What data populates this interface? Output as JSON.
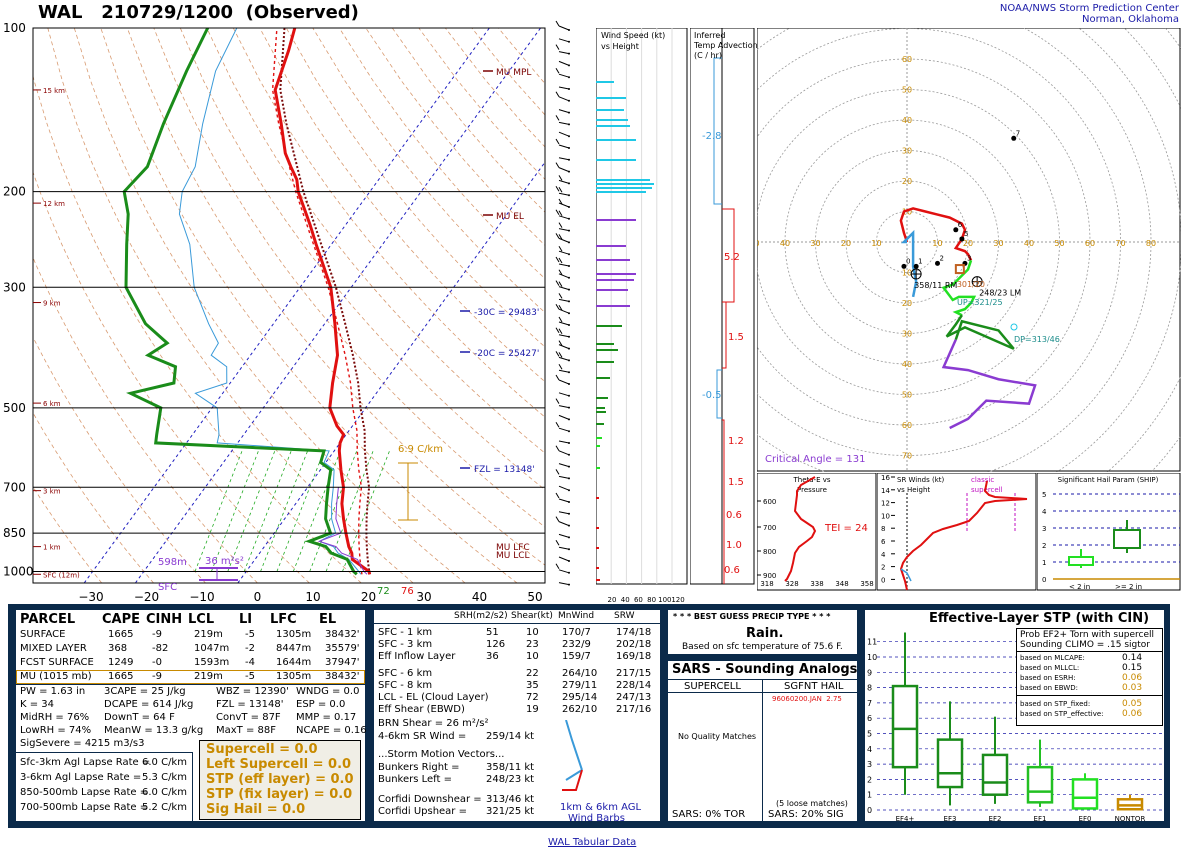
{
  "header": {
    "station": "WAL",
    "time_id": "210729/1200",
    "observed": "(Observed)",
    "org1": "NOAA/NWS Storm Prediction Center",
    "org2": "Norman, Oklahoma"
  },
  "skewt": {
    "pressure_levels": [
      100,
      200,
      300,
      500,
      700,
      850,
      1000
    ],
    "pressure_labels": [
      "100",
      "200",
      "300",
      "500",
      "700",
      "850",
      "1000"
    ],
    "temp_ticks": [
      -30,
      -20,
      -10,
      0,
      10,
      20,
      30,
      40,
      50
    ],
    "temp_labels": [
      "−30",
      "−20",
      "−10",
      "0",
      "10",
      "20",
      "30",
      "40",
      "50"
    ],
    "height_marks": [
      {
        "label": "15 km",
        "p": 130
      },
      {
        "label": "12 km",
        "p": 210
      },
      {
        "label": "9 km",
        "p": 320
      },
      {
        "label": "6 km",
        "p": 490
      },
      {
        "label": "3 km",
        "p": 710
      },
      {
        "label": "1 km",
        "p": 900
      },
      {
        "label": "SFC (12m)",
        "p": 1012
      }
    ],
    "annotations": {
      "mu_mpl": "MU MPL",
      "mu_el": "MU EL",
      "mu_lfc": "MU LFC",
      "mu_lcl": "MU LCL",
      "m30c": "-30C = 29483'",
      "m20c": "-20C = 25427'",
      "fzl": "FZL = 13148'",
      "lapse": "6.9 C/km",
      "pw_box": "36 m²s²",
      "left_label": "598m",
      "sfc_label": "SFC",
      "sfc_t": "76",
      "sfc_td": "72"
    },
    "temperature_profile": [
      [
        1012,
        24.5
      ],
      [
        1000,
        24
      ],
      [
        950,
        19
      ],
      [
        925,
        18
      ],
      [
        900,
        16.5
      ],
      [
        850,
        14
      ],
      [
        800,
        11.5
      ],
      [
        750,
        9
      ],
      [
        700,
        7
      ],
      [
        650,
        4
      ],
      [
        600,
        1
      ],
      [
        580,
        0
      ],
      [
        560,
        -0.5
      ],
      [
        540,
        -3
      ],
      [
        500,
        -7
      ],
      [
        450,
        -10
      ],
      [
        400,
        -13
      ],
      [
        350,
        -18
      ],
      [
        300,
        -24
      ],
      [
        250,
        -33
      ],
      [
        230,
        -37
      ],
      [
        200,
        -44
      ],
      [
        190,
        -46
      ],
      [
        180,
        -49
      ],
      [
        170,
        -52
      ],
      [
        150,
        -57
      ],
      [
        130,
        -63
      ],
      [
        110,
        -66
      ],
      [
        100,
        -68
      ]
    ],
    "dewpoint_profile": [
      [
        1012,
        22
      ],
      [
        1000,
        21
      ],
      [
        950,
        18
      ],
      [
        925,
        14
      ],
      [
        900,
        12
      ],
      [
        880,
        8
      ],
      [
        850,
        11
      ],
      [
        800,
        8
      ],
      [
        750,
        6
      ],
      [
        700,
        4
      ],
      [
        650,
        2
      ],
      [
        630,
        -1
      ],
      [
        600,
        -2
      ],
      [
        580,
        -36
      ],
      [
        560,
        -37
      ],
      [
        500,
        -40
      ],
      [
        470,
        -48
      ],
      [
        450,
        -41
      ],
      [
        420,
        -43
      ],
      [
        400,
        -50
      ],
      [
        380,
        -48
      ],
      [
        350,
        -55
      ],
      [
        300,
        -64
      ],
      [
        250,
        -70
      ],
      [
        220,
        -74
      ],
      [
        200,
        -78
      ],
      [
        180,
        -77
      ],
      [
        150,
        -80
      ],
      [
        120,
        -83
      ],
      [
        100,
        -85
      ]
    ],
    "parcel_profile": [
      [
        1012,
        24.5
      ],
      [
        950,
        22
      ],
      [
        900,
        20
      ],
      [
        850,
        18
      ],
      [
        800,
        16
      ],
      [
        750,
        14
      ],
      [
        700,
        12
      ],
      [
        650,
        9
      ],
      [
        600,
        6
      ],
      [
        550,
        3
      ],
      [
        500,
        -1
      ],
      [
        450,
        -5
      ],
      [
        400,
        -10
      ],
      [
        350,
        -16
      ],
      [
        300,
        -23
      ],
      [
        250,
        -32
      ],
      [
        200,
        -43
      ],
      [
        150,
        -56
      ],
      [
        130,
        -62
      ],
      [
        100,
        -70
      ]
    ]
  },
  "wind_speed_panel": {
    "title1": "Wind Speed (kt)",
    "title2": "vs Height",
    "axis_labels": [
      "20",
      "40",
      "60",
      "80",
      "100",
      "120"
    ]
  },
  "temp_adv_panel": {
    "title1": "Inferred",
    "title2": "Temp Advection",
    "title3": "(C / hr)",
    "values": [
      "-2.8",
      "5.2",
      "1.5",
      "-0.5",
      "1.2",
      "1.5",
      "0.6",
      "1.0",
      "0.6"
    ]
  },
  "hodograph": {
    "ring_labels": [
      "10",
      "20",
      "30",
      "40",
      "50",
      "60",
      "70"
    ],
    "axis_labels_x": [
      "50",
      "40",
      "30",
      "20",
      "10",
      "10",
      "20",
      "30",
      "40",
      "50",
      "60",
      "70",
      "80"
    ],
    "lm": "248/23 LM",
    "rm": "358/11 RM",
    "box_label": "301/20",
    "up_label": "UP=321/25",
    "dp_label": "DP=313/46",
    "critical_angle": "Critical Angle = 131",
    "points": [
      "0",
      "1",
      "2",
      "3",
      "5",
      "6",
      "7"
    ]
  },
  "theta_panel": {
    "title1": "Theta-E vs",
    "title2": "Pressure",
    "tei": "TEI = 24",
    "x_labels": [
      "318",
      "328",
      "338",
      "348",
      "358"
    ],
    "p_labels": [
      "600",
      "700",
      "800",
      "900"
    ]
  },
  "srwinds_panel": {
    "title1": "SR Winds (kt)",
    "title2": "vs Height",
    "classic": "classic",
    "supercell": "supercell",
    "y_labels": [
      "16",
      "14",
      "12",
      "10",
      "8",
      "6",
      "4",
      "2",
      "0"
    ]
  },
  "ship_panel": {
    "title": "Significant Hail Param (SHIP)",
    "y_labels": [
      "5",
      "4",
      "3",
      "2",
      "1",
      "0"
    ],
    "lt2": "< 2 in",
    "ge2": ">= 2 in"
  },
  "parcel_table": {
    "headers": [
      "PARCEL",
      "CAPE",
      "CINH",
      "LCL",
      "LI",
      "LFC",
      "EL"
    ],
    "rows": [
      [
        "SURFACE",
        "1665",
        "-9",
        "219m",
        "-5",
        "1305m",
        "38432'"
      ],
      [
        "MIXED LAYER",
        "368",
        "-82",
        "1047m",
        "-2",
        "8447m",
        "35579'"
      ],
      [
        "FCST SURFACE",
        "1249",
        "-0",
        "1593m",
        "-4",
        "1644m",
        "37947'"
      ],
      [
        "MU    (1015 mb)",
        "1665",
        "-9",
        "219m",
        "-5",
        "1305m",
        "38432'"
      ]
    ]
  },
  "indices": {
    "col1": [
      "PW = 1.63 in",
      "K = 34",
      "MidRH = 76%",
      "LowRH = 74%",
      "SigSevere = 4215 m3/s3"
    ],
    "col2": [
      "3CAPE = 25 J/kg",
      "DCAPE = 614 J/kg",
      "DownT = 64 F",
      "MeanW = 13.3 g/kg"
    ],
    "col3": [
      "WBZ = 12390'",
      "FZL = 13148'",
      "ConvT = 87F",
      "MaxT = 88F"
    ],
    "col4": [
      "WNDG = 0.0",
      "ESP = 0.0",
      "MMP = 0.17",
      "NCAPE = 0.16"
    ]
  },
  "lapse_rates": [
    [
      "Sfc-3km Agl Lapse Rate =",
      "6.0 C/km"
    ],
    [
      "3-6km Agl Lapse Rate =",
      "5.3 C/km"
    ],
    [
      "850-500mb Lapse Rate =",
      "6.0 C/km"
    ],
    [
      "700-500mb Lapse Rate =",
      "5.2 C/km"
    ]
  ],
  "composites": [
    "Supercell = 0.0",
    "Left Supercell = 0.0",
    "STP (eff layer) = 0.0",
    "STP (fix layer) = 0.0",
    "Sig Hail = 0.0"
  ],
  "kinematics": {
    "headers": [
      "SRH(m2/s2)",
      "Shear(kt)",
      "MnWind",
      "SRW"
    ],
    "rows": [
      [
        "SFC - 1 km",
        "51",
        "10",
        "170/7",
        "174/18"
      ],
      [
        "SFC - 3 km",
        "126",
        "23",
        "232/9",
        "202/18"
      ],
      [
        "Eff Inflow Layer",
        "36",
        "10",
        "159/7",
        "169/18"
      ],
      [
        "SFC - 6 km",
        "",
        "22",
        "264/10",
        "217/15"
      ],
      [
        "SFC - 8 km",
        "",
        "35",
        "279/11",
        "228/14"
      ],
      [
        "LCL - EL (Cloud Layer)",
        "",
        "72",
        "295/14",
        "247/13"
      ],
      [
        "Eff Shear (EBWD)",
        "",
        "19",
        "262/10",
        "217/16"
      ]
    ],
    "brn_shear": "BRN Shear =  26 m²/s²",
    "sr_wind": "4-6km SR Wind =",
    "sr_wind_val": "259/14 kt",
    "storm_motion_title": "...Storm Motion Vectors...",
    "motions": [
      [
        "Bunkers Right =",
        "358/11 kt"
      ],
      [
        "Bunkers Left =",
        "248/23 kt"
      ],
      [
        "Corfidi Downshear =",
        "313/46 kt"
      ],
      [
        "Corfidi Upshear =",
        "321/25 kt"
      ]
    ],
    "barb_legend1": "1km & 6km AGL",
    "barb_legend2": "Wind Barbs"
  },
  "precip": {
    "title": "* * * BEST GUESS PRECIP TYPE * * *",
    "type": "Rain.",
    "note": "Based on sfc temperature of 75.6 F."
  },
  "sars": {
    "title": "SARS - Sounding Analogs",
    "col1": "SUPERCELL",
    "col2": "SGFNT HAIL",
    "match_hail": "96060200.JAN",
    "match_val": "2.75",
    "no_matches": "No Quality Matches",
    "loose": "(5 loose matches)",
    "tor": "SARS:  0% TOR",
    "sig": "SARS: 20% SIG"
  },
  "stp": {
    "title": "Effective-Layer STP (with CIN)",
    "prob": "Prob EF2+ Torn with supercell",
    "clim": "Sounding CLIMO = .15 sigtor",
    "rows": [
      [
        "based on MLCAPE:",
        "0.14"
      ],
      [
        "based on MLLCL:",
        "0.15"
      ],
      [
        "based on ESRH:",
        "0.06"
      ],
      [
        "based on EBWD:",
        "0.03"
      ],
      [
        "based on STP_fixed:",
        "0.05"
      ],
      [
        "based on STP_effective:",
        "0.06"
      ]
    ],
    "y_labels": [
      "11",
      "10",
      "9",
      "8",
      "7",
      "6",
      "5",
      "4",
      "3",
      "2",
      "1",
      "0"
    ],
    "categories": [
      "EF4+",
      "EF3",
      "EF2",
      "EF1",
      "EF0",
      "NONTOR"
    ]
  },
  "footer": {
    "link": "WAL Tabular Data"
  },
  "colors": {
    "navy": "#0b2a4a",
    "temp": "#e01010",
    "dew": "#1a8c1a",
    "parcel": "#7a0a0a",
    "cyan": "#1fc8e6",
    "purple": "#8a3bd1",
    "gold": "#c88a00"
  }
}
